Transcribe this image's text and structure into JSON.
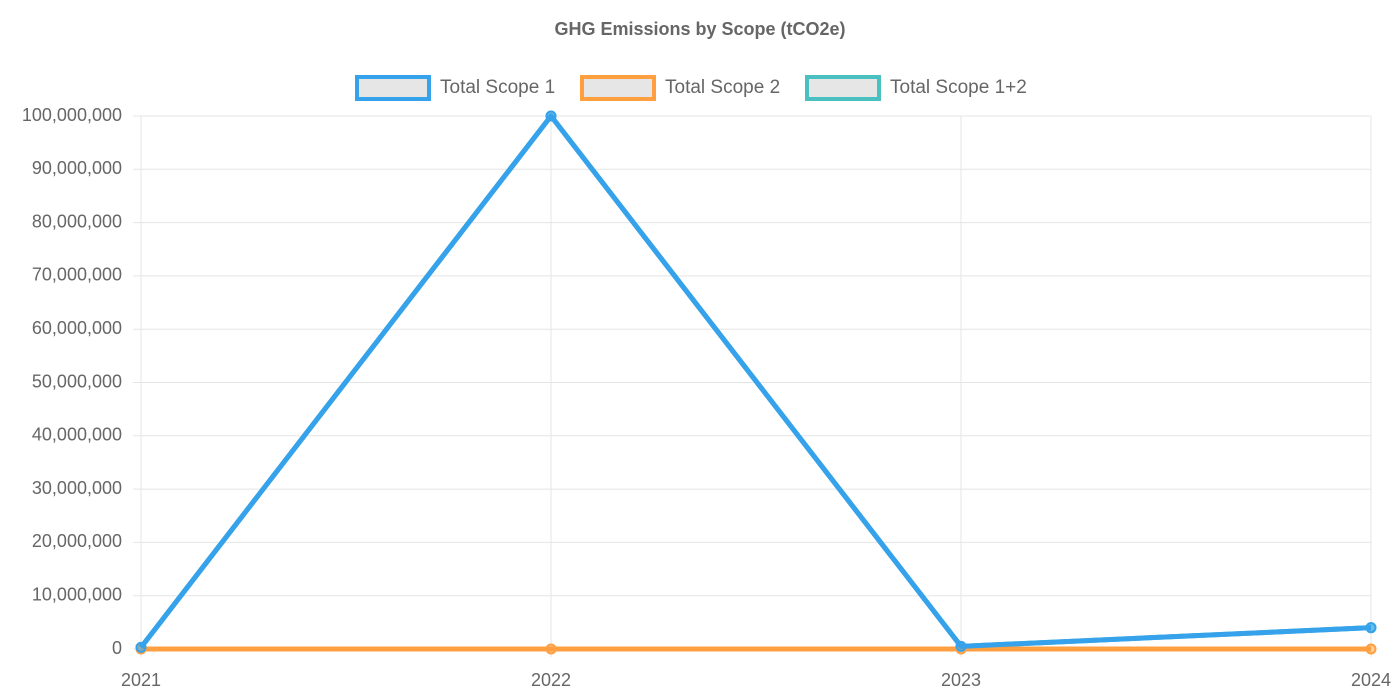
{
  "chart_data": {
    "type": "line",
    "title": "GHG Emissions by Scope (tCO2e)",
    "categories": [
      "2021",
      "2022",
      "2023",
      "2024"
    ],
    "series": [
      {
        "name": "Total Scope 1",
        "color": "#36a2eb",
        "values": [
          300000,
          100000000,
          500000,
          4000000
        ]
      },
      {
        "name": "Total Scope 2",
        "color": "#ff9f40",
        "values": [
          0,
          0,
          0,
          0
        ]
      },
      {
        "name": "Total Scope 1+2",
        "color": "#4bc0c0",
        "values": [
          300000,
          100000000,
          500000,
          4000000
        ]
      }
    ],
    "ylim": [
      0,
      100000000
    ],
    "yticks": [
      0,
      {
        "value": 10000000,
        "label": "10,000,000"
      },
      {
        "value": 20000000,
        "label": "20,000,000"
      },
      {
        "value": 30000000,
        "label": "30,000,000"
      },
      {
        "value": 40000000,
        "label": "40,000,000"
      },
      {
        "value": 50000000,
        "label": "50,000,000"
      },
      {
        "value": 60000000,
        "label": "60,000,000"
      },
      {
        "value": 70000000,
        "label": "70,000,000"
      },
      {
        "value": 80000000,
        "label": "80,000,000"
      },
      {
        "value": 90000000,
        "label": "90,000,000"
      },
      {
        "value": 100000000,
        "label": "100,000,000"
      }
    ],
    "grid": true,
    "legend": "top"
  }
}
